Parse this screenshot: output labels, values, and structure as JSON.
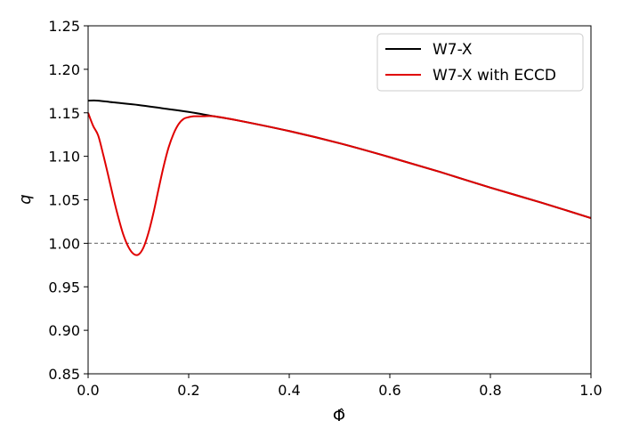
{
  "chart_data": {
    "type": "line",
    "xlabel": "Φ̂",
    "ylabel": "q",
    "xlim": [
      0.0,
      1.0
    ],
    "ylim": [
      0.85,
      1.25
    ],
    "x_ticks": [
      "0.0",
      "0.2",
      "0.4",
      "0.6",
      "0.8",
      "1.0"
    ],
    "y_ticks": [
      "0.85",
      "0.90",
      "0.95",
      "1.00",
      "1.05",
      "1.10",
      "1.15",
      "1.20",
      "1.25"
    ],
    "grid": false,
    "legend_position": "top-right",
    "reference_line": {
      "y": 1.0,
      "style": "dashed",
      "color": "#808080"
    },
    "series": [
      {
        "name": "W7-X",
        "color": "#000000",
        "x": [
          0.0,
          0.02,
          0.05,
          0.1,
          0.15,
          0.2,
          0.25,
          0.3,
          0.4,
          0.5,
          0.6,
          0.7,
          0.8,
          0.9,
          1.0
        ],
        "y": [
          1.164,
          1.164,
          1.162,
          1.159,
          1.155,
          1.151,
          1.146,
          1.141,
          1.129,
          1.115,
          1.099,
          1.082,
          1.064,
          1.047,
          1.029
        ]
      },
      {
        "name": "W7-X with ECCD",
        "color": "#e00000",
        "x": [
          0.0,
          0.01,
          0.02,
          0.03,
          0.04,
          0.05,
          0.06,
          0.07,
          0.08,
          0.09,
          0.1,
          0.11,
          0.12,
          0.13,
          0.14,
          0.15,
          0.16,
          0.17,
          0.18,
          0.19,
          0.2,
          0.21,
          0.22,
          0.23,
          0.25,
          0.3,
          0.4,
          0.5,
          0.6,
          0.7,
          0.8,
          0.9,
          1.0
        ],
        "y": [
          1.15,
          1.135,
          1.124,
          1.102,
          1.078,
          1.053,
          1.03,
          1.01,
          0.996,
          0.988,
          0.987,
          0.995,
          1.012,
          1.035,
          1.062,
          1.088,
          1.11,
          1.126,
          1.137,
          1.143,
          1.145,
          1.146,
          1.146,
          1.146,
          1.146,
          1.141,
          1.129,
          1.115,
          1.099,
          1.082,
          1.064,
          1.047,
          1.029
        ]
      }
    ]
  }
}
